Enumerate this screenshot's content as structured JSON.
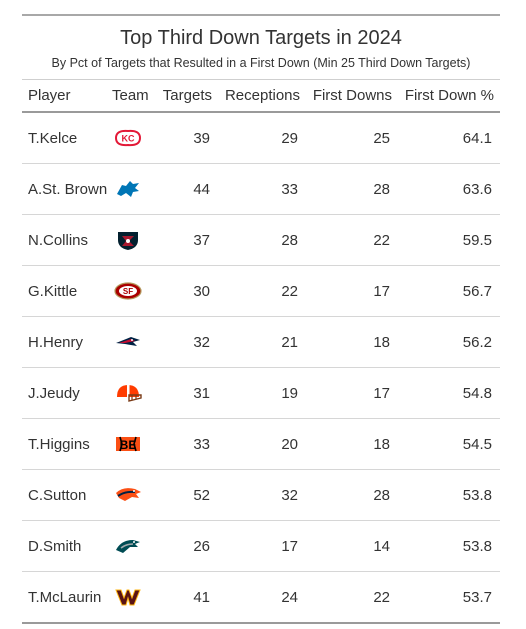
{
  "table": {
    "title": "Top Third Down Targets in 2024",
    "subtitle": "By Pct of Targets that Resulted in a First Down (Min 25 Third Down Targets)",
    "columns": [
      "Player",
      "Team",
      "Targets",
      "Receptions",
      "First Downs",
      "First Down %"
    ],
    "rows": [
      {
        "player": "T.Kelce",
        "team_icon": "chiefs-logo-icon",
        "targets": "39",
        "receptions": "29",
        "first_downs": "25",
        "pct": "64.1"
      },
      {
        "player": "A.St. Brown",
        "team_icon": "lions-logo-icon",
        "targets": "44",
        "receptions": "33",
        "first_downs": "28",
        "pct": "63.6"
      },
      {
        "player": "N.Collins",
        "team_icon": "texans-logo-icon",
        "targets": "37",
        "receptions": "28",
        "first_downs": "22",
        "pct": "59.5"
      },
      {
        "player": "G.Kittle",
        "team_icon": "49ers-logo-icon",
        "targets": "30",
        "receptions": "22",
        "first_downs": "17",
        "pct": "56.7"
      },
      {
        "player": "H.Henry",
        "team_icon": "patriots-logo-icon",
        "targets": "32",
        "receptions": "21",
        "first_downs": "18",
        "pct": "56.2"
      },
      {
        "player": "J.Jeudy",
        "team_icon": "browns-logo-icon",
        "targets": "31",
        "receptions": "19",
        "first_downs": "17",
        "pct": "54.8"
      },
      {
        "player": "T.Higgins",
        "team_icon": "bengals-logo-icon",
        "targets": "33",
        "receptions": "20",
        "first_downs": "18",
        "pct": "54.5"
      },
      {
        "player": "C.Sutton",
        "team_icon": "broncos-logo-icon",
        "targets": "52",
        "receptions": "32",
        "first_downs": "28",
        "pct": "53.8"
      },
      {
        "player": "D.Smith",
        "team_icon": "eagles-logo-icon",
        "targets": "26",
        "receptions": "17",
        "first_downs": "14",
        "pct": "53.8"
      },
      {
        "player": "T.McLaurin",
        "team_icon": "commanders-logo-icon",
        "targets": "41",
        "receptions": "24",
        "first_downs": "22",
        "pct": "53.7"
      }
    ]
  },
  "colors": {
    "chiefs": "#e31837",
    "lions": "#0076b6",
    "texans": "#03202f",
    "texans_red": "#a71930",
    "niners": "#aa0000",
    "niners_gold": "#b3995d",
    "patriots": "#002244",
    "patriots_red": "#c60c30",
    "browns": "#ff3c00",
    "bengals": "#fb4f14",
    "broncos": "#fb4f14",
    "broncos_navy": "#002244",
    "eagles": "#004c54",
    "commanders": "#5a1414",
    "commanders_gold": "#ffb612"
  }
}
